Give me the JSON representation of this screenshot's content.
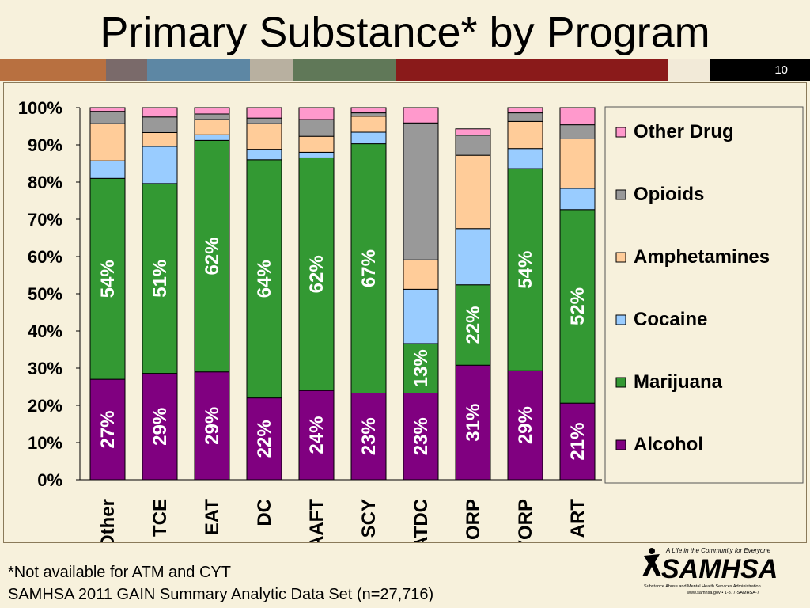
{
  "slide": {
    "title": "Primary Substance* by Program",
    "page_number": "10",
    "footnote": "*Not available for ATM and CYT",
    "source": "SAMHSA 2011 GAIN Summary Analytic Data Set (n=27,716)",
    "band_colors": [
      "#b87040",
      "#7a6a6a",
      "#5d87a4",
      "#b8b0a0",
      "#607858",
      "#8a1a1a",
      "#f2ead8"
    ],
    "logo": {
      "tagline": "A Life in the Community for Everyone",
      "name": "SAMHSA",
      "subtitle": "Substance Abuse and Mental Health Services Administration",
      "url": "www.samhsa.gov • 1-877-SAMHSA-7"
    }
  },
  "chart_data": {
    "type": "bar",
    "stacked": true,
    "percent": true,
    "ylim": [
      0,
      100
    ],
    "yticks": [
      "0%",
      "10%",
      "20%",
      "30%",
      "40%",
      "50%",
      "60%",
      "70%",
      "80%",
      "90%",
      "100%"
    ],
    "categories": [
      "Other",
      "TCE",
      "EAT",
      "DC",
      "AAFT",
      "SCY",
      "ATDC",
      "ORP",
      "YORP",
      "ART"
    ],
    "series": [
      {
        "name": "Alcohol",
        "color": "#800080",
        "values": [
          27,
          28.6,
          29,
          22,
          24,
          23.3,
          23.3,
          30.8,
          29.3,
          20.6
        ],
        "labels": [
          "27%",
          "29%",
          "29%",
          "22%",
          "24%",
          "23%",
          "23%",
          "31%",
          "29%",
          "21%"
        ]
      },
      {
        "name": "Marijuana",
        "color": "#339933",
        "values": [
          54,
          51,
          62.2,
          64,
          62.5,
          67,
          13.3,
          21.6,
          54.3,
          52
        ],
        "labels": [
          "54%",
          "51%",
          "62%",
          "64%",
          "62%",
          "67%",
          "13%",
          "22%",
          "54%",
          "52%"
        ]
      },
      {
        "name": "Cocaine",
        "color": "#99ccff",
        "values": [
          4.7,
          10,
          1.5,
          2.8,
          1.5,
          3.1,
          14.6,
          15.1,
          5.4,
          5.7
        ],
        "labels": []
      },
      {
        "name": "Amphetamines",
        "color": "#ffcc99",
        "values": [
          10,
          3.7,
          4.1,
          6.9,
          4.3,
          4.3,
          7.9,
          19.7,
          7.3,
          13.3
        ],
        "labels": []
      },
      {
        "name": "Opioids",
        "color": "#999999",
        "values": [
          3.3,
          4.2,
          1.5,
          1.5,
          4.5,
          0.9,
          36.8,
          5.4,
          2.3,
          3.8
        ],
        "labels": []
      },
      {
        "name": "Other Drug",
        "color": "#ff99cc",
        "values": [
          1,
          2.5,
          1.7,
          2.8,
          3.2,
          1.4,
          4.1,
          1.7,
          1.4,
          4.6
        ],
        "labels": []
      }
    ],
    "legend": {
      "position": "right",
      "order": [
        "Other Drug",
        "Opioids",
        "Amphetamines",
        "Cocaine",
        "Marijuana",
        "Alcohol"
      ]
    },
    "grid": false
  }
}
